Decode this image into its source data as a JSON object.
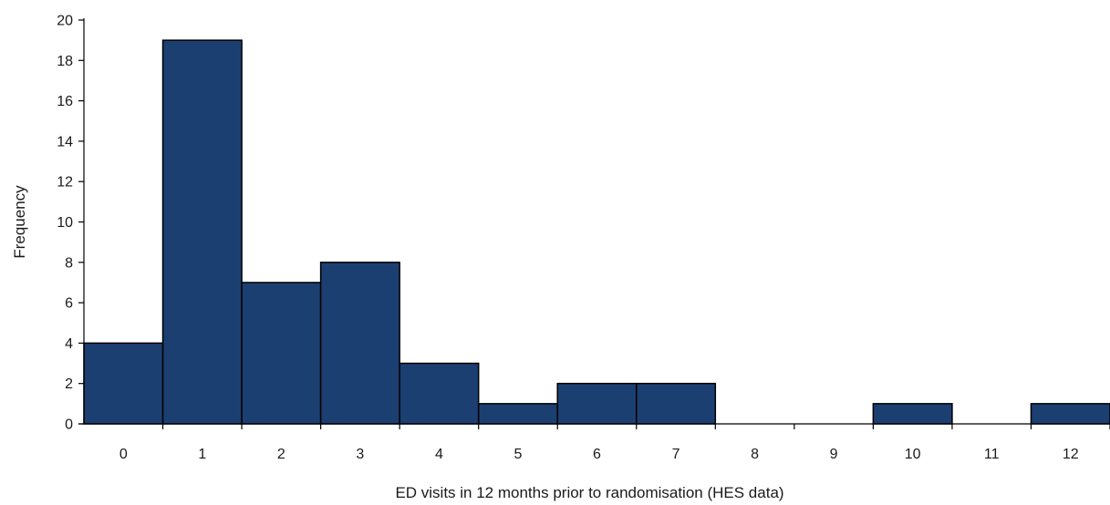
{
  "chart_data": {
    "type": "bar",
    "title": "",
    "xlabel": "ED visits in 12 months prior to randomisation (HES data)",
    "ylabel": "Frequency",
    "categories": [
      "0",
      "1",
      "2",
      "3",
      "4",
      "5",
      "6",
      "7",
      "8",
      "9",
      "10",
      "11",
      "12"
    ],
    "values": [
      4,
      19,
      7,
      8,
      3,
      1,
      2,
      2,
      0,
      0,
      1,
      0,
      1
    ],
    "ylim": [
      0,
      20
    ],
    "yticks": [
      0,
      2,
      4,
      6,
      8,
      10,
      12,
      14,
      16,
      18,
      20
    ],
    "grid": false,
    "legend": "none",
    "bar_color": "#1c3f72"
  }
}
